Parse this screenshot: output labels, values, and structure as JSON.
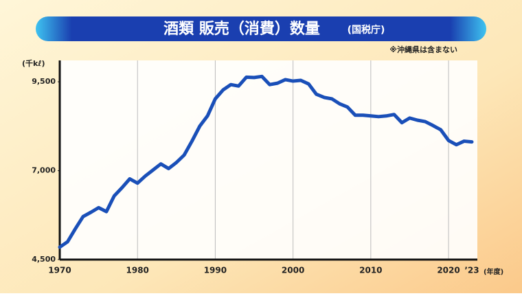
{
  "chart_data": {
    "type": "line",
    "title": "酒類 販売（消費）数量",
    "source": "(国税庁)",
    "note": "※沖縄県は含まない",
    "y_unit": "(千kℓ)",
    "x_unit": "(年度)",
    "x": [
      1970,
      1971,
      1972,
      1973,
      1974,
      1975,
      1976,
      1977,
      1978,
      1979,
      1980,
      1981,
      1982,
      1983,
      1984,
      1985,
      1986,
      1987,
      1988,
      1989,
      1990,
      1991,
      1992,
      1993,
      1994,
      1995,
      1996,
      1997,
      1998,
      1999,
      2000,
      2001,
      2002,
      2003,
      2004,
      2005,
      2006,
      2007,
      2008,
      2009,
      2010,
      2011,
      2012,
      2013,
      2014,
      2015,
      2016,
      2017,
      2018,
      2019,
      2020,
      2021,
      2022,
      2023
    ],
    "series": [
      {
        "color": "#1a4fb8",
        "values": [
          4850,
          5000,
          5365,
          5710,
          5830,
          5960,
          5850,
          6290,
          6520,
          6770,
          6650,
          6850,
          7020,
          7190,
          7060,
          7230,
          7440,
          7830,
          8250,
          8540,
          9020,
          9270,
          9420,
          9380,
          9630,
          9620,
          9650,
          9420,
          9460,
          9560,
          9520,
          9540,
          9440,
          9150,
          9060,
          9020,
          8880,
          8790,
          8560,
          8560,
          8540,
          8520,
          8540,
          8580,
          8350,
          8480,
          8420,
          8380,
          8270,
          8150,
          7850,
          7730,
          7830,
          7810
        ]
      }
    ],
    "xlim": [
      1970,
      2023
    ],
    "xticks": [
      1970,
      1980,
      1990,
      2000,
      2010,
      2020,
      {
        "value": 2023,
        "label": "’23"
      }
    ],
    "ylim": [
      4500,
      10100
    ],
    "yticks": [
      {
        "value": 4500,
        "label": "4,500"
      },
      {
        "value": 7000,
        "label": "7,000"
      },
      {
        "value": 9500,
        "label": "9,500"
      }
    ],
    "grid": true
  }
}
